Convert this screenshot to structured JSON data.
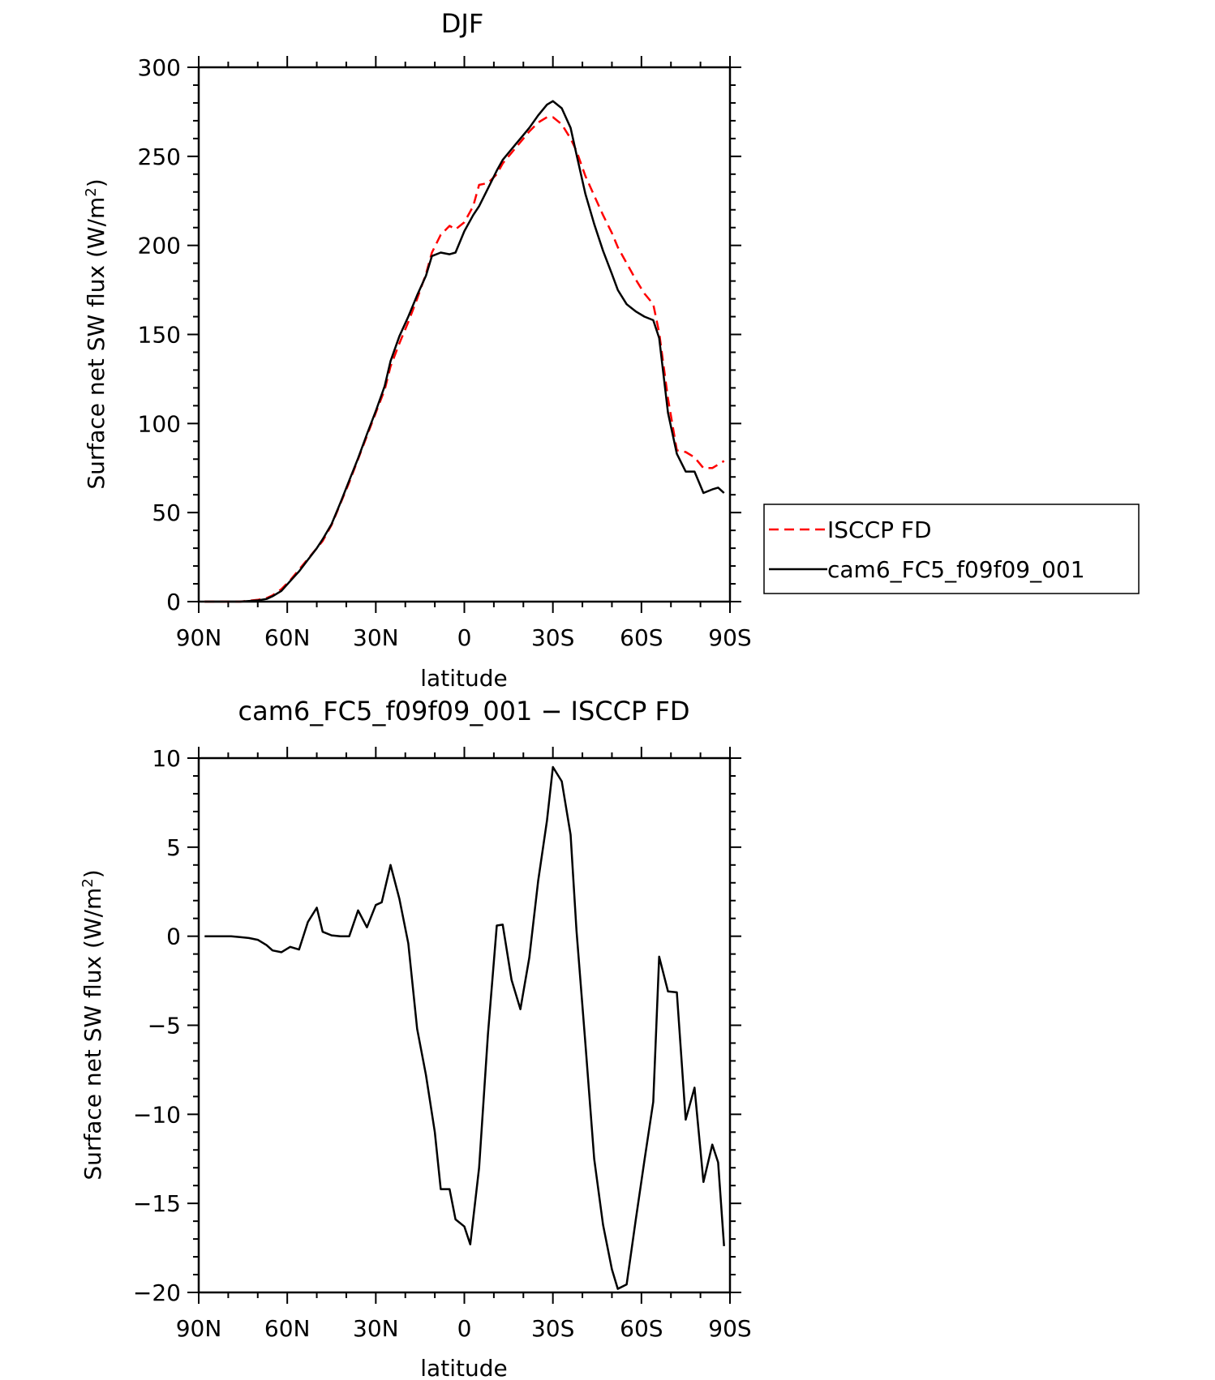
{
  "chart_data": [
    {
      "type": "line",
      "title": "DJF",
      "xlabel": "latitude",
      "ylabel": "Surface net SW flux (W/m²)",
      "ylabel_main": "Surface net SW flux (W/m",
      "ylabel_sup": "2",
      "ylabel_close": ")",
      "xlim": [
        -90,
        90
      ],
      "ylim": [
        0,
        300
      ],
      "x_ticks": [
        {
          "value": -90,
          "label": "90N"
        },
        {
          "value": -60,
          "label": "60N"
        },
        {
          "value": -30,
          "label": "30N"
        },
        {
          "value": 0,
          "label": "0"
        },
        {
          "value": 30,
          "label": "30S"
        },
        {
          "value": 60,
          "label": "60S"
        },
        {
          "value": 90,
          "label": "90S"
        }
      ],
      "y_ticks": [
        {
          "value": 0,
          "label": "0"
        },
        {
          "value": 50,
          "label": "50"
        },
        {
          "value": 100,
          "label": "100"
        },
        {
          "value": 150,
          "label": "150"
        },
        {
          "value": 200,
          "label": "200"
        },
        {
          "value": 250,
          "label": "250"
        },
        {
          "value": 300,
          "label": "300"
        }
      ],
      "legend_position": "right",
      "series": [
        {
          "name": "ISCCP FD",
          "color": "#ff0000",
          "dash": "dashed",
          "points": [
            [
              -88,
              0
            ],
            [
              -85,
              0
            ],
            [
              -82,
              0
            ],
            [
              -79,
              0
            ],
            [
              -76,
              0
            ],
            [
              -73,
              0.5
            ],
            [
              -70,
              1
            ],
            [
              -67,
              2
            ],
            [
              -65,
              3.5
            ],
            [
              -62,
              7
            ],
            [
              -59,
              12
            ],
            [
              -56,
              18
            ],
            [
              -53,
              24
            ],
            [
              -50,
              30
            ],
            [
              -48,
              34
            ],
            [
              -45,
              43
            ],
            [
              -42,
              55
            ],
            [
              -39,
              67
            ],
            [
              -36,
              80
            ],
            [
              -33,
              93
            ],
            [
              -30,
              106
            ],
            [
              -27,
              119
            ],
            [
              -25,
              132
            ],
            [
              -22,
              145
            ],
            [
              -19,
              157
            ],
            [
              -16,
              170
            ],
            [
              -13,
              184
            ],
            [
              -11,
              196
            ],
            [
              -8,
              206
            ],
            [
              -5,
              211
            ],
            [
              -3,
              209
            ],
            [
              0,
              213
            ],
            [
              3,
              222
            ],
            [
              5,
              234
            ],
            [
              8,
              235
            ],
            [
              11,
              240
            ],
            [
              13,
              246
            ],
            [
              16,
              252
            ],
            [
              19,
              258
            ],
            [
              22,
              264
            ],
            [
              25,
              269
            ],
            [
              28,
              272
            ],
            [
              30,
              272
            ],
            [
              33,
              268
            ],
            [
              36,
              260
            ],
            [
              38,
              253
            ],
            [
              41,
              239
            ],
            [
              44,
              228
            ],
            [
              47,
              217
            ],
            [
              50,
              207
            ],
            [
              52,
              199
            ],
            [
              55,
              190
            ],
            [
              58,
              181
            ],
            [
              61,
              173
            ],
            [
              64,
              167
            ],
            [
              66,
              151
            ],
            [
              69,
              114
            ],
            [
              72,
              85
            ],
            [
              75,
              84
            ],
            [
              78,
              81
            ],
            [
              81,
              75
            ],
            [
              84,
              75
            ],
            [
              86,
              77
            ],
            [
              88,
              79
            ]
          ]
        },
        {
          "name": "cam6_FC5_f09f09_001",
          "color": "#000000",
          "dash": "solid",
          "points": [
            [
              -88,
              0
            ],
            [
              -85,
              0
            ],
            [
              -82,
              0
            ],
            [
              -79,
              0
            ],
            [
              -76,
              0
            ],
            [
              -73,
              0.3
            ],
            [
              -70,
              0.7
            ],
            [
              -67,
              1.5
            ],
            [
              -65,
              3
            ],
            [
              -62,
              6
            ],
            [
              -59,
              11.5
            ],
            [
              -56,
              17
            ],
            [
              -53,
              23.5
            ],
            [
              -50,
              30
            ],
            [
              -48,
              35
            ],
            [
              -45,
              43.5
            ],
            [
              -42,
              55.5
            ],
            [
              -39,
              68
            ],
            [
              -36,
              80.5
            ],
            [
              -33,
              94
            ],
            [
              -30,
              107
            ],
            [
              -27,
              121
            ],
            [
              -25,
              135
            ],
            [
              -22,
              149
            ],
            [
              -19,
              160
            ],
            [
              -16,
              172
            ],
            [
              -13,
              183
            ],
            [
              -11,
              194
            ],
            [
              -8,
              196
            ],
            [
              -5,
              195
            ],
            [
              -3,
              196
            ],
            [
              0,
              208
            ],
            [
              3,
              217
            ],
            [
              5,
              222
            ],
            [
              8,
              232
            ],
            [
              11,
              242
            ],
            [
              13,
              248
            ],
            [
              16,
              254
            ],
            [
              19,
              260
            ],
            [
              22,
              266
            ],
            [
              25,
              273
            ],
            [
              28,
              279
            ],
            [
              30,
              281
            ],
            [
              33,
              277
            ],
            [
              36,
              266
            ],
            [
              38,
              251
            ],
            [
              41,
              229
            ],
            [
              44,
              212
            ],
            [
              47,
              197
            ],
            [
              50,
              184
            ],
            [
              52,
              175
            ],
            [
              55,
              167
            ],
            [
              58,
              163
            ],
            [
              61,
              160
            ],
            [
              64,
              158
            ],
            [
              66,
              148
            ],
            [
              69,
              106
            ],
            [
              72,
              83
            ],
            [
              75,
              73
            ],
            [
              78,
              73
            ],
            [
              81,
              61
            ],
            [
              84,
              63
            ],
            [
              86,
              64
            ],
            [
              88,
              61
            ]
          ]
        }
      ]
    },
    {
      "type": "line",
      "title": "cam6_FC5_f09f09_001 − ISCCP FD",
      "xlabel": "latitude",
      "ylabel": "Surface net SW flux (W/m²)",
      "ylabel_main": "Surface net SW flux (W/m",
      "ylabel_sup": "2",
      "ylabel_close": ")",
      "xlim": [
        -90,
        90
      ],
      "ylim": [
        -20,
        10
      ],
      "x_ticks": [
        {
          "value": -90,
          "label": "90N"
        },
        {
          "value": -60,
          "label": "60N"
        },
        {
          "value": -30,
          "label": "30N"
        },
        {
          "value": 0,
          "label": "0"
        },
        {
          "value": 30,
          "label": "30S"
        },
        {
          "value": 60,
          "label": "60S"
        },
        {
          "value": 90,
          "label": "90S"
        }
      ],
      "y_ticks": [
        {
          "value": -20,
          "label": "−20"
        },
        {
          "value": -15,
          "label": "−15"
        },
        {
          "value": -10,
          "label": "−10"
        },
        {
          "value": -5,
          "label": "−5"
        },
        {
          "value": 0,
          "label": "0"
        },
        {
          "value": 5,
          "label": "5"
        },
        {
          "value": 10,
          "label": "10"
        }
      ],
      "series": [
        {
          "color": "#000000",
          "dash": "solid",
          "points": [
            [
              -88,
              0
            ],
            [
              -85,
              0
            ],
            [
              -82,
              0
            ],
            [
              -79,
              0
            ],
            [
              -76,
              -0.05
            ],
            [
              -73,
              -0.1
            ],
            [
              -70,
              -0.2
            ],
            [
              -67,
              -0.5
            ],
            [
              -65,
              -0.8
            ],
            [
              -62,
              -0.9
            ],
            [
              -59,
              -0.6
            ],
            [
              -56,
              -0.75
            ],
            [
              -53,
              0.8
            ],
            [
              -50,
              1.6
            ],
            [
              -48,
              0.25
            ],
            [
              -45,
              0.05
            ],
            [
              -42,
              0
            ],
            [
              -39,
              0
            ],
            [
              -36,
              1.45
            ],
            [
              -33,
              0.5
            ],
            [
              -30,
              1.75
            ],
            [
              -28,
              1.9
            ],
            [
              -25,
              4.0
            ],
            [
              -22,
              2.1
            ],
            [
              -19,
              -0.4
            ],
            [
              -16,
              -5.2
            ],
            [
              -13,
              -7.8
            ],
            [
              -10,
              -11.0
            ],
            [
              -8,
              -14.2
            ],
            [
              -5,
              -14.2
            ],
            [
              -3,
              -15.9
            ],
            [
              0,
              -16.3
            ],
            [
              2,
              -17.3
            ],
            [
              5,
              -13.0
            ],
            [
              8,
              -5.5
            ],
            [
              11,
              0.6
            ],
            [
              13,
              0.65
            ],
            [
              16,
              -2.45
            ],
            [
              19,
              -4.1
            ],
            [
              22,
              -1.2
            ],
            [
              25,
              3.1
            ],
            [
              28,
              6.5
            ],
            [
              30,
              9.5
            ],
            [
              33,
              8.7
            ],
            [
              36,
              5.7
            ],
            [
              38,
              0.3
            ],
            [
              41,
              -6.0
            ],
            [
              44,
              -12.5
            ],
            [
              47,
              -16.2
            ],
            [
              50,
              -18.7
            ],
            [
              52,
              -19.8
            ],
            [
              55,
              -19.55
            ],
            [
              58,
              -16.0
            ],
            [
              61,
              -12.6
            ],
            [
              64,
              -9.3
            ],
            [
              66,
              -1.15
            ],
            [
              69,
              -3.1
            ],
            [
              72,
              -3.15
            ],
            [
              75,
              -10.3
            ],
            [
              78,
              -8.5
            ],
            [
              81,
              -13.8
            ],
            [
              84,
              -11.7
            ],
            [
              86,
              -12.7
            ],
            [
              88,
              -17.4
            ]
          ]
        }
      ]
    }
  ]
}
